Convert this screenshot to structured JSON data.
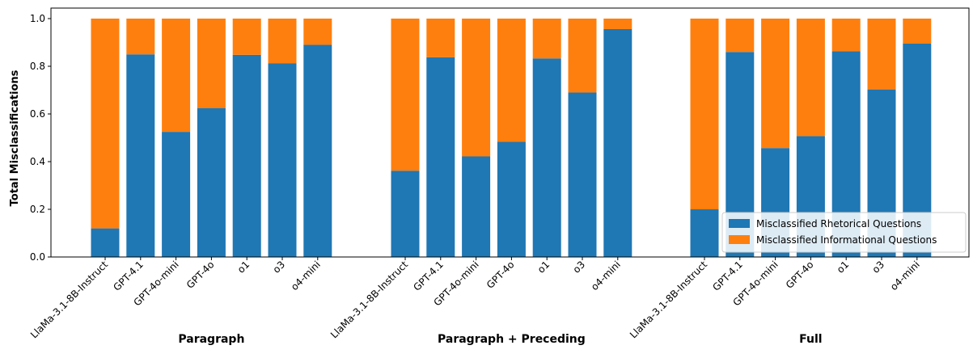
{
  "chart_data": {
    "type": "bar",
    "stacked": true,
    "ylabel": "Total Misclassifications",
    "ylim": [
      0,
      1.0
    ],
    "yticks": [
      "0.0",
      "0.2",
      "0.4",
      "0.6",
      "0.8",
      "1.0"
    ],
    "grid": false,
    "legend_position": "bottom-right",
    "groups": [
      {
        "name": "Paragraph",
        "categories": [
          "LlaMa-3.1-8B-Instruct",
          "GPT-4.1",
          "GPT-4o-mini",
          "GPT-4o",
          "o1",
          "o3",
          "o4-mini"
        ],
        "rhetorical": [
          0.12,
          0.85,
          0.525,
          0.625,
          0.848,
          0.813,
          0.89
        ],
        "informational": [
          0.88,
          0.15,
          0.475,
          0.375,
          0.152,
          0.187,
          0.11
        ]
      },
      {
        "name": "Paragraph + Preceding",
        "categories": [
          "LlaMa-3.1-8B-Instruct",
          "GPT-4.1",
          "GPT-4o-mini",
          "GPT-4o",
          "o1",
          "o3",
          "o4-mini"
        ],
        "rhetorical": [
          0.362,
          0.838,
          0.422,
          0.483,
          0.833,
          0.69,
          0.956
        ],
        "informational": [
          0.638,
          0.162,
          0.578,
          0.517,
          0.167,
          0.31,
          0.044
        ]
      },
      {
        "name": "Full",
        "categories": [
          "LlaMa-3.1-8B-Instruct",
          "GPT-4.1",
          "GPT-4o-mini",
          "GPT-4o",
          "o1",
          "o3",
          "o4-mini"
        ],
        "rhetorical": [
          0.2,
          0.86,
          0.457,
          0.507,
          0.863,
          0.703,
          0.895
        ],
        "informational": [
          0.8,
          0.14,
          0.543,
          0.493,
          0.137,
          0.297,
          0.105
        ]
      }
    ],
    "series": [
      {
        "name": "Misclassified Rhetorical Questions",
        "key": "rhetorical",
        "color": "#1f77b4"
      },
      {
        "name": "Misclassified Informational Questions",
        "key": "informational",
        "color": "#ff7f0e"
      }
    ]
  }
}
